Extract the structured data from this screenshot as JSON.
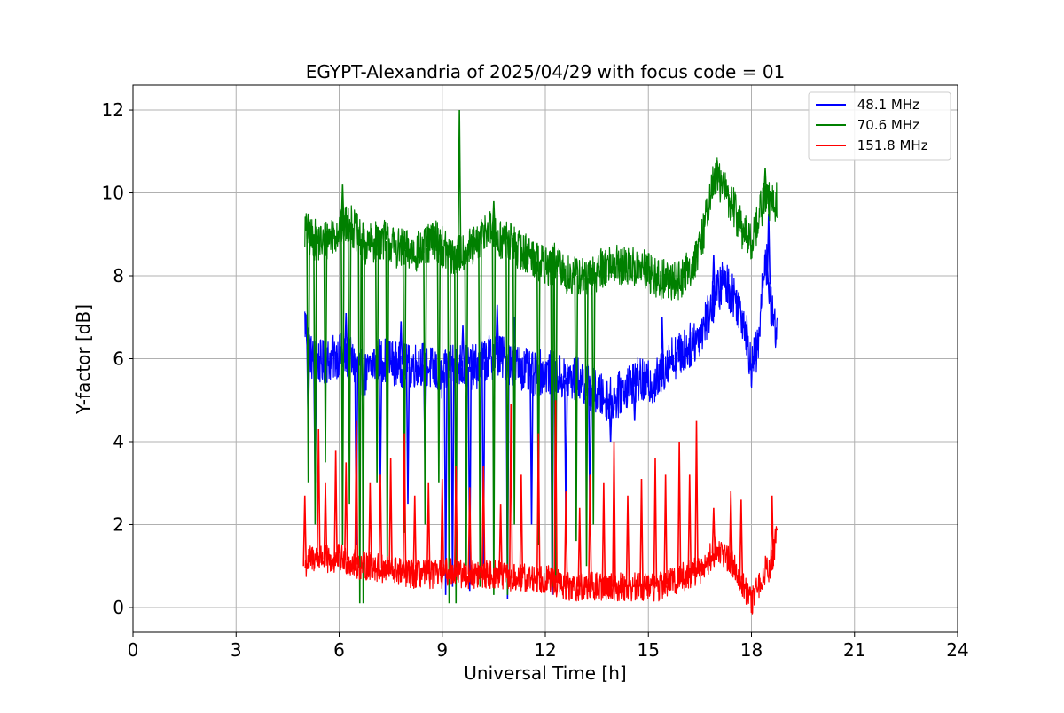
{
  "chart_data": {
    "type": "line",
    "title": "EGYPT-Alexandria of 2025/04/29 with focus code = 01",
    "xlabel": "Universal Time [h]",
    "ylabel": "Y-factor [dB]",
    "xlim": [
      0,
      24
    ],
    "ylim": [
      -0.6,
      12.6
    ],
    "xticks": [
      0,
      3,
      6,
      9,
      12,
      15,
      18,
      21,
      24
    ],
    "yticks": [
      0,
      2,
      4,
      6,
      8,
      10,
      12
    ],
    "xtick_labels": [
      "0",
      "3",
      "6",
      "9",
      "12",
      "15",
      "18",
      "21",
      "24"
    ],
    "ytick_labels": [
      "0",
      "2",
      "4",
      "6",
      "8",
      "10",
      "12"
    ],
    "grid": true,
    "legend": {
      "position": "top-right"
    },
    "series": [
      {
        "name": " 48.1 MHz",
        "color": "#0000ff",
        "x": [
          5.0,
          5.2,
          5.5,
          5.8,
          6.0,
          6.3,
          6.6,
          6.8,
          7.0,
          7.3,
          7.6,
          8.0,
          8.4,
          8.8,
          9.0,
          9.3,
          9.6,
          10.0,
          10.3,
          10.6,
          11.0,
          11.3,
          11.6,
          12.0,
          12.3,
          12.6,
          13.0,
          13.3,
          13.6,
          14.0,
          14.3,
          14.6,
          15.0,
          15.3,
          15.6,
          15.9,
          16.2,
          16.5,
          16.8,
          17.0,
          17.2,
          17.5,
          17.8,
          18.0,
          18.2,
          18.4,
          18.6,
          18.75
        ],
        "y": [
          6.9,
          6.0,
          5.9,
          6.0,
          6.1,
          6.0,
          5.7,
          5.6,
          5.9,
          6.0,
          5.9,
          5.8,
          5.9,
          5.7,
          5.5,
          6.0,
          5.8,
          5.8,
          6.0,
          6.1,
          5.9,
          5.8,
          5.6,
          5.7,
          5.6,
          5.5,
          5.5,
          5.3,
          5.1,
          5.0,
          5.3,
          5.5,
          5.4,
          5.5,
          6.0,
          6.1,
          6.3,
          6.6,
          7.2,
          7.6,
          7.9,
          7.5,
          6.9,
          5.8,
          6.3,
          8.6,
          7.0,
          6.7
        ],
        "dips_x": [
          5.1,
          5.3,
          6.5,
          7.2,
          8.0,
          8.5,
          9.1,
          9.3,
          9.8,
          10.2,
          10.9,
          11.6,
          12.2,
          12.6,
          13.3,
          13.9,
          14.6
        ],
        "dips_y": [
          4.3,
          3.0,
          1.5,
          3.0,
          2.5,
          3.5,
          0.3,
          0.5,
          0.4,
          1.0,
          0.2,
          2.0,
          0.3,
          1.9,
          2.0,
          4.0,
          4.5
        ],
        "spikes_x": [
          6.2,
          7.8,
          9.6,
          10.6,
          11.1,
          15.4,
          16.9,
          18.5
        ],
        "spikes_y": [
          7.1,
          6.9,
          6.8,
          7.3,
          7.0,
          7.0,
          8.5,
          9.5
        ]
      },
      {
        "name": " 70.6 MHz",
        "color": "#008000",
        "x": [
          5.0,
          5.2,
          5.5,
          5.8,
          6.0,
          6.3,
          6.6,
          6.8,
          7.0,
          7.3,
          7.6,
          8.0,
          8.4,
          8.8,
          9.0,
          9.3,
          9.6,
          10.0,
          10.3,
          10.6,
          11.0,
          11.3,
          11.6,
          12.0,
          12.3,
          12.6,
          13.0,
          13.3,
          13.6,
          14.0,
          14.3,
          14.6,
          15.0,
          15.3,
          15.6,
          15.9,
          16.2,
          16.5,
          16.8,
          17.0,
          17.2,
          17.5,
          17.8,
          18.0,
          18.2,
          18.4,
          18.6,
          18.75
        ],
        "y": [
          9.1,
          8.9,
          8.8,
          9.0,
          9.1,
          9.3,
          8.9,
          8.7,
          8.8,
          8.9,
          8.7,
          8.6,
          8.6,
          8.9,
          8.7,
          8.4,
          8.6,
          8.7,
          9.2,
          8.9,
          8.8,
          8.6,
          8.5,
          8.2,
          8.3,
          8.0,
          8.0,
          7.9,
          8.2,
          8.3,
          8.2,
          8.2,
          8.1,
          7.9,
          7.9,
          7.9,
          8.2,
          8.6,
          10.0,
          10.4,
          10.1,
          9.6,
          9.0,
          8.8,
          9.4,
          9.9,
          9.7,
          9.8
        ],
        "dips_x": [
          5.1,
          5.3,
          5.6,
          6.1,
          6.3,
          6.6,
          6.7,
          7.1,
          7.4,
          7.9,
          8.5,
          8.9,
          9.2,
          9.4,
          9.7,
          10.1,
          10.5,
          10.9,
          11.1,
          11.8,
          12.2,
          12.3,
          12.9,
          13.2,
          13.4
        ],
        "dips_y": [
          3.0,
          2.0,
          3.5,
          1.5,
          2.5,
          0.1,
          0.1,
          3.0,
          1.0,
          1.8,
          2.0,
          3.0,
          0.1,
          0.1,
          1.0,
          0.5,
          0.3,
          0.3,
          2.0,
          1.5,
          0.5,
          0.4,
          1.6,
          1.0,
          2.0
        ],
        "spikes_x": [
          5.1,
          6.1,
          9.5,
          10.5,
          17.0,
          18.4
        ],
        "spikes_y": [
          9.5,
          10.2,
          12.0,
          9.8,
          10.8,
          10.6
        ]
      },
      {
        "name": " 151.8 MHz",
        "color": "#ff0000",
        "x": [
          5.0,
          5.2,
          5.5,
          5.8,
          6.0,
          6.3,
          6.6,
          6.8,
          7.0,
          7.3,
          7.6,
          8.0,
          8.4,
          8.8,
          9.0,
          9.3,
          9.6,
          10.0,
          10.3,
          10.6,
          11.0,
          11.3,
          11.6,
          12.0,
          12.3,
          12.6,
          13.0,
          13.3,
          13.6,
          14.0,
          14.3,
          14.6,
          15.0,
          15.3,
          15.6,
          15.9,
          16.2,
          16.5,
          16.8,
          17.0,
          17.2,
          17.5,
          17.8,
          18.0,
          18.2,
          18.4,
          18.6,
          18.75
        ],
        "y": [
          1.0,
          1.2,
          1.2,
          1.1,
          1.2,
          1.1,
          1.0,
          1.0,
          1.0,
          0.9,
          0.9,
          0.8,
          0.8,
          0.8,
          0.8,
          0.9,
          0.8,
          0.8,
          0.8,
          0.8,
          0.7,
          0.7,
          0.7,
          0.7,
          0.6,
          0.5,
          0.5,
          0.5,
          0.5,
          0.5,
          0.5,
          0.5,
          0.5,
          0.5,
          0.6,
          0.7,
          0.8,
          0.9,
          1.2,
          1.4,
          1.3,
          1.0,
          0.5,
          0.1,
          0.5,
          0.9,
          1.0,
          1.9
        ],
        "spikes_x": [
          5.0,
          5.4,
          5.6,
          5.9,
          6.2,
          6.5,
          6.9,
          7.2,
          7.5,
          7.9,
          8.2,
          8.6,
          9.0,
          9.4,
          9.8,
          10.2,
          10.7,
          11.0,
          11.3,
          11.8,
          12.3,
          12.6,
          13.0,
          13.3,
          13.7,
          14.0,
          14.4,
          14.8,
          15.2,
          15.5,
          15.9,
          16.2,
          16.4,
          16.9,
          17.4,
          17.7,
          18.6
        ],
        "spikes_y": [
          2.7,
          4.3,
          3.0,
          3.8,
          3.5,
          4.5,
          3.0,
          3.2,
          3.6,
          4.2,
          2.7,
          3.0,
          3.1,
          3.4,
          2.9,
          3.4,
          2.5,
          4.9,
          3.2,
          4.2,
          5.0,
          2.8,
          2.4,
          3.2,
          3.0,
          4.0,
          2.7,
          3.1,
          3.6,
          3.2,
          4.0,
          3.2,
          4.5,
          2.4,
          2.8,
          2.6,
          2.7
        ]
      }
    ]
  }
}
